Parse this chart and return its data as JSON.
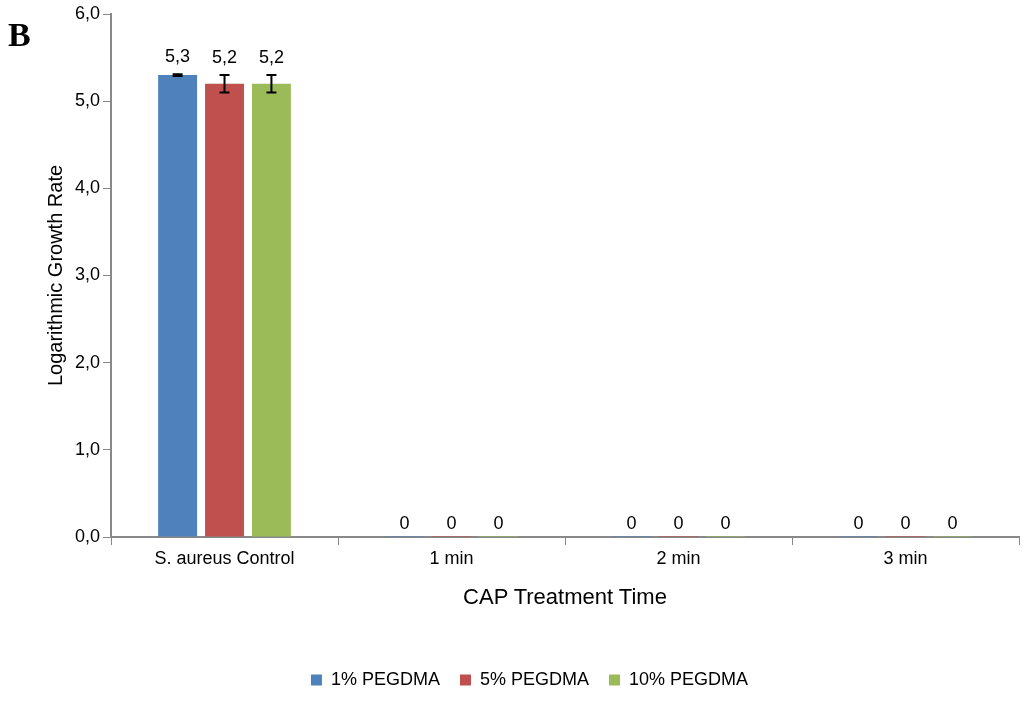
{
  "chart_data": {
    "type": "bar",
    "xlabel": "CAP Treatment Time",
    "ylabel": "Logarithmic Growth Rate",
    "annotations": [
      "B"
    ],
    "categories": [
      "S. aureus Control",
      "1 min",
      "2 min",
      "3 min"
    ],
    "series": [
      {
        "name": "1% PEGDMA",
        "color": "#4f81bd",
        "values": [
          5.3,
          0,
          0,
          0
        ],
        "errors": [
          0.01,
          null,
          null,
          null
        ],
        "value_labels": [
          "5,3",
          "0",
          "0",
          "0"
        ]
      },
      {
        "name": "5% PEGDMA",
        "color": "#c0504d",
        "values": [
          5.2,
          0,
          0,
          0
        ],
        "errors": [
          0.1,
          null,
          null,
          null
        ],
        "value_labels": [
          "5,2",
          "0",
          "0",
          "0"
        ]
      },
      {
        "name": "10% PEGDMA",
        "color": "#9bbb59",
        "values": [
          5.2,
          0,
          0,
          0
        ],
        "errors": [
          0.1,
          null,
          null,
          null
        ],
        "value_labels": [
          "5,2",
          "0",
          "0",
          "0"
        ]
      }
    ],
    "ylim": [
      0,
      6
    ],
    "yticks": [
      {
        "value": 0,
        "label": "0,0"
      },
      {
        "value": 1,
        "label": "1,0"
      },
      {
        "value": 2,
        "label": "2,0"
      },
      {
        "value": 3,
        "label": "3,0"
      },
      {
        "value": 4,
        "label": "4,0"
      },
      {
        "value": 5,
        "label": "5,0"
      },
      {
        "value": 6,
        "label": "6,0"
      }
    ],
    "grid": false,
    "legend": "bottom"
  }
}
